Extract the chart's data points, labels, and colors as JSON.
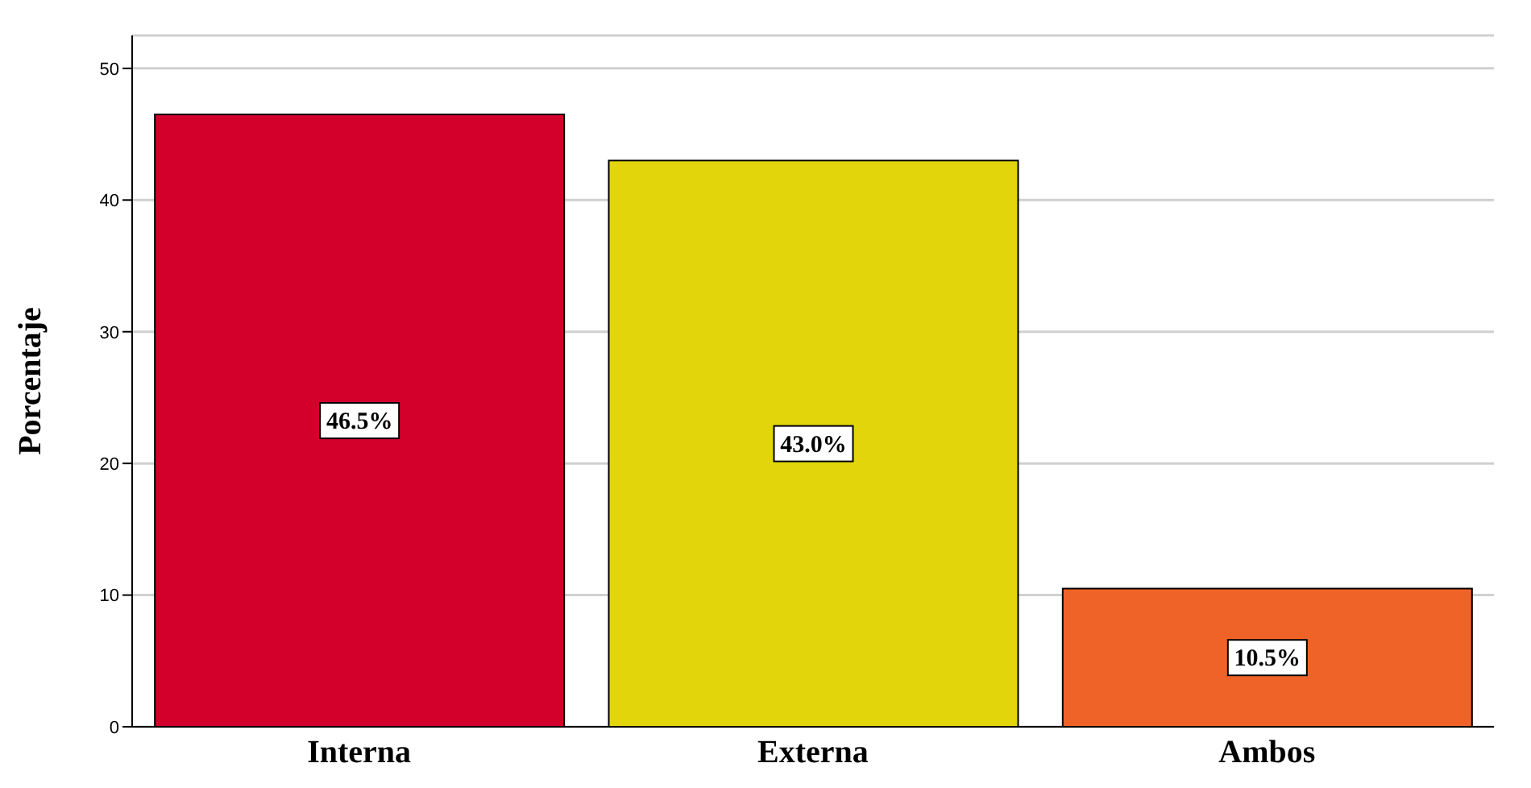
{
  "chart_data": {
    "type": "bar",
    "ylabel": "Porcentaje",
    "categories": [
      "Interna",
      "Externa",
      "Ambos"
    ],
    "values": [
      46.5,
      43.0,
      10.5
    ],
    "colors": [
      "#d4002c",
      "#e2d50c",
      "#ef6328"
    ],
    "value_labels": [
      "46.5%",
      "43.0%",
      "10.5%"
    ],
    "ylim": [
      0,
      52.5
    ],
    "yticks": [
      0,
      10,
      20,
      30,
      40,
      50
    ],
    "grid": "y"
  }
}
